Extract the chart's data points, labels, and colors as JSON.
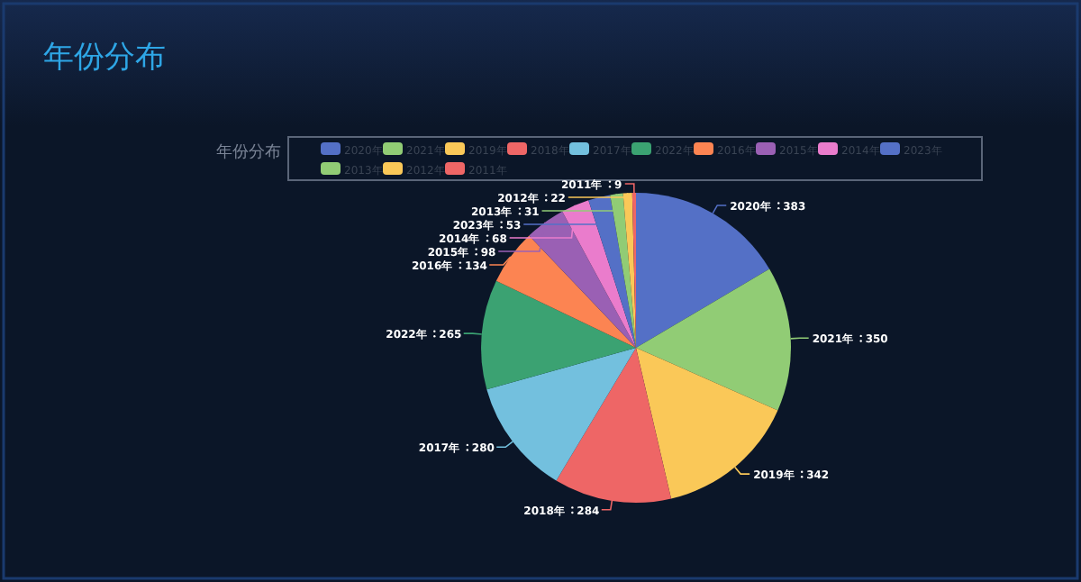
{
  "chart_data": {
    "type": "pie",
    "title": "年份分布",
    "subtitle": "年份分布",
    "categories": [
      "2020年",
      "2021年",
      "2019年",
      "2018年",
      "2017年",
      "2022年",
      "2016年",
      "2015年",
      "2014年",
      "2023年",
      "2013年",
      "2012年",
      "2011年"
    ],
    "values": [
      383,
      350,
      342,
      284,
      280,
      265,
      134,
      98,
      68,
      53,
      31,
      22,
      9
    ],
    "colors": [
      "#5470c6",
      "#91cc75",
      "#fac858",
      "#ee6666",
      "#73c0de",
      "#3ba272",
      "#fc8452",
      "#9a60b4",
      "#ea7ccc",
      "#5470c6",
      "#91cc75",
      "#fac858",
      "#ee6666"
    ],
    "data_labels": true,
    "legend": "top"
  }
}
